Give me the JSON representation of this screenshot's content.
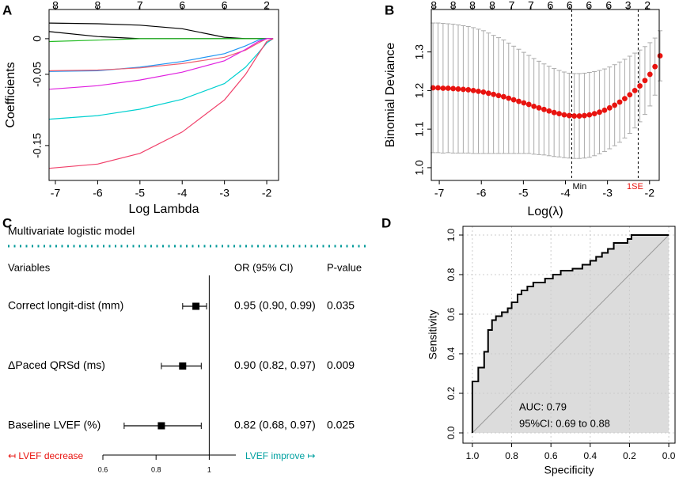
{
  "chart_data": [
    {
      "panel": "A",
      "type": "line",
      "xlabel": "Log Lambda",
      "ylabel": "Coefficients",
      "xlim": [
        -7.15,
        -1.72
      ],
      "ylim": [
        -0.199,
        0.041
      ],
      "xticks": [
        -7,
        -6,
        -5,
        -4,
        -3,
        -2
      ],
      "yticks": [
        0,
        -0.05,
        -0.15
      ],
      "top_ticks": [
        {
          "value": -7,
          "label": "8"
        },
        {
          "value": -6,
          "label": "8"
        },
        {
          "value": -5,
          "label": "7"
        },
        {
          "value": -4,
          "label": "6"
        },
        {
          "value": -3,
          "label": "6"
        },
        {
          "value": -2,
          "label": "2"
        }
      ],
      "x": [
        -7.15,
        -6,
        -5,
        -4,
        -3,
        -2.5,
        -2.2,
        -2,
        -1.85
      ],
      "series": [
        {
          "color": "#000000",
          "values": [
            0.022,
            0.021,
            0.019,
            0.014,
            0.002,
            0,
            0,
            0,
            0
          ]
        },
        {
          "color": "#000000",
          "values": [
            0.01,
            0.003,
            0,
            0,
            0,
            0,
            0,
            0,
            0
          ]
        },
        {
          "color": "#22bb22",
          "values": [
            -0.004,
            -0.002,
            0,
            0,
            0,
            0,
            0,
            0,
            0
          ]
        },
        {
          "color": "#2196f3",
          "values": [
            -0.046,
            -0.045,
            -0.04,
            -0.032,
            -0.021,
            -0.01,
            -0.002,
            0,
            0
          ]
        },
        {
          "color": "#f06070",
          "values": [
            -0.045,
            -0.044,
            -0.041,
            -0.035,
            -0.026,
            -0.016,
            -0.006,
            0,
            0
          ]
        },
        {
          "color": "#e020e0",
          "values": [
            -0.071,
            -0.066,
            -0.058,
            -0.047,
            -0.031,
            -0.015,
            -0.004,
            0,
            0
          ]
        },
        {
          "color": "#00d0d0",
          "values": [
            -0.113,
            -0.108,
            -0.099,
            -0.085,
            -0.063,
            -0.04,
            -0.02,
            -0.006,
            0
          ]
        },
        {
          "color": "#f0406a",
          "values": [
            -0.182,
            -0.176,
            -0.161,
            -0.131,
            -0.086,
            -0.05,
            -0.022,
            -0.004,
            0
          ]
        }
      ]
    },
    {
      "panel": "B",
      "type": "scatter",
      "xlabel": "Log(λ)",
      "ylabel": "Binomial Deviance",
      "xlim": [
        -7.19,
        -1.77
      ],
      "ylim": [
        0.967,
        1.41
      ],
      "xticks": [
        -7,
        -6,
        -5,
        -4,
        -3,
        -2
      ],
      "yticks": [
        {
          "value": 1,
          "label": "1.0"
        },
        1.1,
        1.2,
        1.3
      ],
      "top_ticks": [
        {
          "value": -7.13,
          "label": "8"
        },
        {
          "value": -6.67,
          "label": "8"
        },
        {
          "value": -6.21,
          "label": "8"
        },
        {
          "value": -5.74,
          "label": "8"
        },
        {
          "value": -5.28,
          "label": "7"
        },
        {
          "value": -4.82,
          "label": "7"
        },
        {
          "value": -4.36,
          "label": "6"
        },
        {
          "value": -3.9,
          "label": "6"
        },
        {
          "value": -3.44,
          "label": "6"
        },
        {
          "value": -2.97,
          "label": "6"
        },
        {
          "value": -2.51,
          "label": "3"
        },
        {
          "value": -2.05,
          "label": "2"
        }
      ],
      "vlines": [
        {
          "value": -3.85,
          "label": "Min",
          "color": "#000000"
        },
        {
          "value": -2.27,
          "label": "1SE",
          "color": "#e8130f"
        }
      ],
      "color": "#e8130f",
      "error_color": "#aaaaaa",
      "x": [
        -7.15,
        -7.03,
        -6.91,
        -6.79,
        -6.67,
        -6.55,
        -6.43,
        -6.31,
        -6.19,
        -6.07,
        -5.95,
        -5.83,
        -5.71,
        -5.59,
        -5.47,
        -5.35,
        -5.23,
        -5.11,
        -4.99,
        -4.87,
        -4.75,
        -4.63,
        -4.51,
        -4.39,
        -4.27,
        -4.15,
        -4.03,
        -3.91,
        -3.79,
        -3.67,
        -3.55,
        -3.43,
        -3.31,
        -3.19,
        -3.07,
        -2.95,
        -2.83,
        -2.71,
        -2.59,
        -2.47,
        -2.35,
        -2.23,
        -2.11,
        -1.99,
        -1.87,
        -1.75
      ],
      "values": [
        1.207,
        1.207,
        1.206,
        1.206,
        1.205,
        1.204,
        1.203,
        1.202,
        1.2,
        1.198,
        1.196,
        1.193,
        1.19,
        1.187,
        1.184,
        1.18,
        1.176,
        1.172,
        1.168,
        1.164,
        1.159,
        1.155,
        1.151,
        1.147,
        1.143,
        1.14,
        1.137,
        1.135,
        1.134,
        1.134,
        1.135,
        1.137,
        1.14,
        1.144,
        1.149,
        1.155,
        1.162,
        1.17,
        1.179,
        1.189,
        1.2,
        1.212,
        1.226,
        1.242,
        1.262,
        1.29
      ],
      "errors": [
        0.168,
        0.168,
        0.168,
        0.167,
        0.167,
        0.166,
        0.165,
        0.164,
        0.163,
        0.161,
        0.159,
        0.156,
        0.153,
        0.15,
        0.147,
        0.143,
        0.139,
        0.135,
        0.131,
        0.127,
        0.124,
        0.121,
        0.118,
        0.116,
        0.114,
        0.112,
        0.111,
        0.11,
        0.11,
        0.11,
        0.11,
        0.11,
        0.109,
        0.108,
        0.107,
        0.106,
        0.105,
        0.104,
        0.102,
        0.1,
        0.097,
        0.093,
        0.088,
        0.082,
        0.074,
        0.065
      ]
    },
    {
      "panel": "C",
      "type": "forest",
      "title": "Multivariate logistic  model",
      "headers": [
        "Variables",
        "OR (95% CI)",
        "P-value"
      ],
      "xlim": [
        0.6,
        1.1
      ],
      "xticks": [
        0.6,
        0.8,
        1
      ],
      "reference_line": 1,
      "left_label": "↤ LVEF decrease",
      "right_label": "LVEF improve ↦",
      "rows": [
        {
          "label": "Correct longit-dist (mm)",
          "or": 0.95,
          "lower": 0.9,
          "upper": 0.99,
          "ci_label": "0.95 (0.90, 0.99)",
          "p": 0.035
        },
        {
          "label": "ΔPaced QRSd (ms)",
          "or": 0.9,
          "lower": 0.82,
          "upper": 0.97,
          "ci_label": "0.90 (0.82, 0.97)",
          "p": 0.009
        },
        {
          "label": "Baseline LVEF (%)",
          "or": 0.82,
          "lower": 0.68,
          "upper": 0.97,
          "ci_label": "0.82 (0.68, 0.97)",
          "p": 0.025
        }
      ]
    },
    {
      "panel": "D",
      "type": "roc",
      "xlabel": "Specificity",
      "ylabel": "Sensitivity",
      "grid": true,
      "xlim": [
        1.048,
        -0.032
      ],
      "ylim": [
        -0.052,
        1.044
      ],
      "xticks": [
        {
          "value": 1,
          "label": "1.0"
        },
        0.8,
        0.6,
        0.4,
        0.2,
        {
          "value": 0,
          "label": "0.0"
        }
      ],
      "yticks": [
        {
          "value": 0,
          "label": "0.0"
        },
        0.2,
        0.4,
        0.6,
        0.8,
        {
          "value": 1,
          "label": "1.0"
        }
      ],
      "annotations": [
        "AUC: 0.79",
        "95%CI: 0.69 to 0.88"
      ],
      "x": [
        1,
        1,
        0.97,
        0.97,
        0.94,
        0.94,
        0.92,
        0.92,
        0.9,
        0.9,
        0.88,
        0.88,
        0.85,
        0.85,
        0.82,
        0.82,
        0.8,
        0.8,
        0.77,
        0.77,
        0.75,
        0.75,
        0.72,
        0.72,
        0.69,
        0.69,
        0.63,
        0.63,
        0.59,
        0.59,
        0.55,
        0.55,
        0.49,
        0.49,
        0.44,
        0.44,
        0.4,
        0.4,
        0.37,
        0.37,
        0.34,
        0.34,
        0.31,
        0.31,
        0.28,
        0.28,
        0.21,
        0.21,
        0.19,
        0.19,
        0
      ],
      "values": [
        0,
        0.26,
        0.26,
        0.33,
        0.33,
        0.41,
        0.41,
        0.52,
        0.52,
        0.57,
        0.57,
        0.59,
        0.59,
        0.61,
        0.61,
        0.63,
        0.63,
        0.66,
        0.66,
        0.7,
        0.7,
        0.72,
        0.72,
        0.74,
        0.74,
        0.76,
        0.76,
        0.78,
        0.78,
        0.8,
        0.8,
        0.82,
        0.82,
        0.83,
        0.83,
        0.85,
        0.85,
        0.87,
        0.87,
        0.89,
        0.89,
        0.91,
        0.91,
        0.93,
        0.93,
        0.96,
        0.96,
        0.98,
        0.98,
        1,
        1
      ]
    }
  ]
}
